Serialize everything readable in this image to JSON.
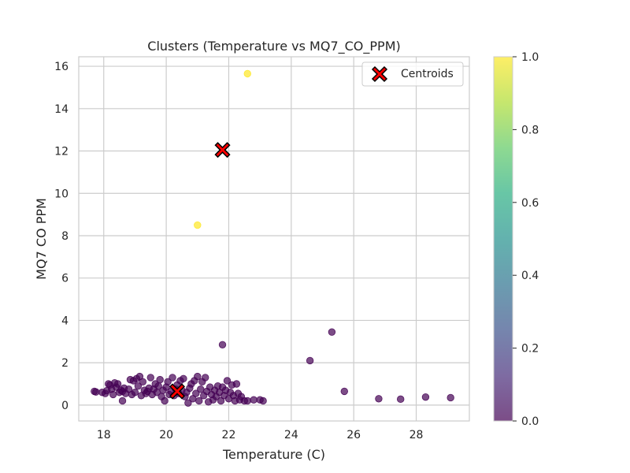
{
  "chart_data": {
    "type": "scatter",
    "title": "Clusters (Temperature vs MQ7_CO_PPM)",
    "xlabel": "Temperature (C)",
    "ylabel": "MQ7 CO PPM",
    "xlim": [
      17.2,
      29.7
    ],
    "ylim": [
      -0.75,
      16.45
    ],
    "xticks": [
      18,
      20,
      22,
      24,
      26,
      28
    ],
    "yticks": [
      0,
      2,
      4,
      6,
      8,
      10,
      12,
      14,
      16
    ],
    "grid": true,
    "legend": {
      "placement": "top-right",
      "entries": [
        "Centroids"
      ]
    },
    "colorbar": {
      "min": 0.0,
      "max": 1.0,
      "ticks": [
        "0.0",
        "0.2",
        "0.4",
        "0.6",
        "0.8",
        "1.0"
      ],
      "colormap": "viridis"
    },
    "colors": {
      "cluster_0": "#440154",
      "cluster_1": "#fde725",
      "centroid": "#ff0000"
    },
    "series": [
      {
        "cluster": 1,
        "points": [
          [
            22.6,
            15.65
          ],
          [
            21.0,
            8.5
          ]
        ]
      },
      {
        "cluster": 0,
        "points": [
          [
            25.3,
            3.45
          ],
          [
            24.6,
            2.1
          ],
          [
            21.8,
            2.85
          ],
          [
            25.7,
            0.65
          ],
          [
            26.8,
            0.3
          ],
          [
            27.5,
            0.28
          ],
          [
            28.3,
            0.38
          ],
          [
            29.1,
            0.35
          ],
          [
            17.7,
            0.65
          ],
          [
            17.75,
            0.62
          ],
          [
            17.95,
            0.6
          ],
          [
            18.05,
            0.55
          ],
          [
            18.1,
            0.68
          ],
          [
            18.15,
            1.0
          ],
          [
            18.2,
            0.95
          ],
          [
            18.25,
            0.75
          ],
          [
            18.3,
            0.5
          ],
          [
            18.35,
            1.05
          ],
          [
            18.4,
            0.85
          ],
          [
            18.45,
            1.0
          ],
          [
            18.5,
            0.6
          ],
          [
            18.55,
            0.7
          ],
          [
            18.6,
            0.65
          ],
          [
            18.65,
            0.8
          ],
          [
            18.6,
            0.2
          ],
          [
            18.7,
            0.55
          ],
          [
            18.8,
            0.75
          ],
          [
            18.85,
            1.2
          ],
          [
            18.9,
            0.5
          ],
          [
            18.95,
            1.15
          ],
          [
            19.0,
            0.6
          ],
          [
            19.05,
            1.25
          ],
          [
            19.1,
            0.9
          ],
          [
            19.15,
            1.35
          ],
          [
            19.2,
            0.45
          ],
          [
            19.25,
            1.1
          ],
          [
            19.3,
            0.7
          ],
          [
            19.35,
            0.55
          ],
          [
            19.4,
            0.65
          ],
          [
            19.45,
            0.8
          ],
          [
            19.5,
            1.3
          ],
          [
            19.55,
            0.5
          ],
          [
            19.6,
            0.75
          ],
          [
            19.65,
            1.0
          ],
          [
            19.7,
            0.6
          ],
          [
            19.75,
            0.9
          ],
          [
            19.8,
            1.2
          ],
          [
            19.85,
            0.4
          ],
          [
            19.9,
            0.7
          ],
          [
            19.95,
            0.2
          ],
          [
            20.0,
            0.85
          ],
          [
            20.05,
            1.1
          ],
          [
            20.1,
            0.5
          ],
          [
            20.15,
            0.65
          ],
          [
            20.2,
            1.3
          ],
          [
            20.25,
            0.45
          ],
          [
            20.3,
            0.75
          ],
          [
            20.35,
            0.95
          ],
          [
            20.4,
            0.55
          ],
          [
            20.45,
            1.15
          ],
          [
            20.5,
            0.7
          ],
          [
            20.55,
            1.25
          ],
          [
            20.6,
            0.4
          ],
          [
            20.65,
            0.6
          ],
          [
            20.7,
            0.1
          ],
          [
            20.75,
            0.8
          ],
          [
            20.8,
            1.0
          ],
          [
            20.85,
            0.3
          ],
          [
            20.9,
            1.15
          ],
          [
            20.95,
            0.55
          ],
          [
            21.0,
            1.35
          ],
          [
            21.05,
            0.2
          ],
          [
            21.1,
            0.75
          ],
          [
            21.15,
            1.1
          ],
          [
            21.2,
            0.45
          ],
          [
            21.25,
            1.3
          ],
          [
            21.3,
            0.65
          ],
          [
            21.35,
            0.15
          ],
          [
            21.4,
            0.85
          ],
          [
            21.45,
            0.5
          ],
          [
            21.5,
            0.25
          ],
          [
            21.55,
            0.7
          ],
          [
            21.6,
            0.4
          ],
          [
            21.65,
            0.9
          ],
          [
            21.7,
            0.6
          ],
          [
            21.75,
            0.2
          ],
          [
            21.8,
            0.85
          ],
          [
            21.85,
            0.45
          ],
          [
            21.9,
            0.7
          ],
          [
            21.95,
            1.15
          ],
          [
            22.0,
            0.3
          ],
          [
            22.05,
            0.6
          ],
          [
            22.1,
            0.95
          ],
          [
            22.15,
            0.45
          ],
          [
            22.2,
            0.2
          ],
          [
            22.25,
            1.0
          ],
          [
            22.3,
            0.55
          ],
          [
            22.35,
            0.25
          ],
          [
            22.4,
            0.4
          ],
          [
            22.5,
            0.2
          ],
          [
            22.6,
            0.2
          ],
          [
            22.8,
            0.25
          ],
          [
            23.0,
            0.25
          ],
          [
            23.1,
            0.2
          ]
        ]
      }
    ],
    "centroids": [
      [
        21.8,
        12.05
      ],
      [
        20.35,
        0.65
      ]
    ]
  }
}
